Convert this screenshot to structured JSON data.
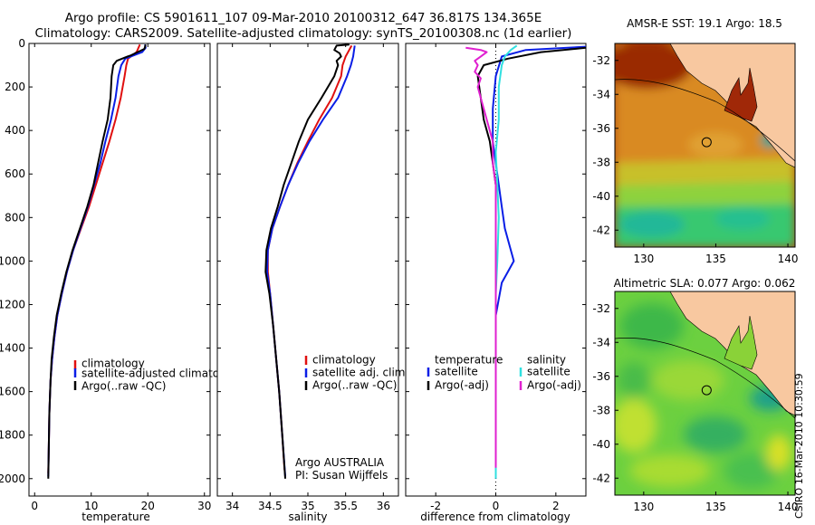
{
  "header": {
    "line1": "Argo profile: CS 5901611_107 09-Mar-2010 20100312_647 36.817S 134.365E",
    "line2": "Climatology: CARS2009. Satellite-adjusted climatology: synTS_20100308.nc (1d earlier)"
  },
  "side_text": "CSIRO 16-Mar-2010 10:30:59",
  "colors": {
    "climatology": "#e01010",
    "satellite": "#0a1ee6",
    "argo": "#000000",
    "salinity_satellite": "#30e0e0",
    "salinity_argo": "#e020d0",
    "land": "#f8c8a0"
  },
  "chart_data": [
    {
      "type": "line",
      "name": "temperature-profile",
      "xlabel": "temperature",
      "ylabel": "",
      "xlim": [
        -1,
        31
      ],
      "ylim": [
        2080,
        0
      ],
      "y_reversed": true,
      "xticks": [
        0,
        10,
        20,
        30
      ],
      "yticks": [
        0,
        200,
        400,
        600,
        800,
        1000,
        1200,
        1400,
        1600,
        1800,
        2000
      ],
      "grid": false,
      "legend": [
        "climatology",
        "satellite-adjusted climatology",
        "Argo(..raw -QC)"
      ],
      "series": [
        {
          "name": "climatology",
          "color": "#e01010",
          "points": [
            [
              18.6,
              5
            ],
            [
              18.0,
              40
            ],
            [
              16.5,
              70
            ],
            [
              16.2,
              100
            ],
            [
              15.9,
              150
            ],
            [
              15.2,
              250
            ],
            [
              14.3,
              350
            ],
            [
              13.2,
              450
            ],
            [
              12.0,
              550
            ],
            [
              10.8,
              650
            ],
            [
              9.6,
              750
            ],
            [
              8.2,
              850
            ],
            [
              6.8,
              950
            ],
            [
              5.7,
              1050
            ],
            [
              4.8,
              1150
            ],
            [
              4.0,
              1250
            ],
            [
              3.5,
              1350
            ],
            [
              3.1,
              1450
            ],
            [
              2.8,
              1550
            ],
            [
              2.6,
              1700
            ],
            [
              2.5,
              1850
            ],
            [
              2.4,
              1975
            ]
          ]
        },
        {
          "name": "satellite-adjusted climatology",
          "color": "#0a1ee6",
          "points": [
            [
              19.5,
              5
            ],
            [
              19.6,
              20
            ],
            [
              19.0,
              40
            ],
            [
              16.0,
              70
            ],
            [
              15.3,
              100
            ],
            [
              14.8,
              150
            ],
            [
              14.3,
              250
            ],
            [
              13.5,
              350
            ],
            [
              12.5,
              450
            ],
            [
              11.6,
              550
            ],
            [
              10.5,
              650
            ],
            [
              9.4,
              750
            ],
            [
              8.1,
              850
            ],
            [
              6.8,
              950
            ],
            [
              5.7,
              1050
            ],
            [
              4.8,
              1150
            ],
            [
              4.0,
              1250
            ],
            [
              3.5,
              1350
            ],
            [
              3.1,
              1450
            ],
            [
              2.8,
              1550
            ],
            [
              2.6,
              1700
            ],
            [
              2.5,
              1850
            ],
            [
              2.4,
              1990
            ]
          ]
        },
        {
          "name": "Argo(..raw -QC)",
          "color": "#000000",
          "points": [
            [
              19.6,
              5
            ],
            [
              19.4,
              25
            ],
            [
              17.0,
              55
            ],
            [
              16.4,
              60
            ],
            [
              14.5,
              80
            ],
            [
              13.9,
              100
            ],
            [
              13.6,
              150
            ],
            [
              13.4,
              250
            ],
            [
              12.9,
              350
            ],
            [
              12.0,
              450
            ],
            [
              11.2,
              550
            ],
            [
              10.4,
              650
            ],
            [
              9.3,
              750
            ],
            [
              8.0,
              850
            ],
            [
              6.7,
              950
            ],
            [
              5.6,
              1050
            ],
            [
              4.7,
              1150
            ],
            [
              3.9,
              1250
            ],
            [
              3.4,
              1350
            ],
            [
              3.0,
              1450
            ],
            [
              2.8,
              1550
            ],
            [
              2.6,
              1700
            ],
            [
              2.5,
              1850
            ],
            [
              2.4,
              2000
            ]
          ]
        }
      ]
    },
    {
      "type": "line",
      "name": "salinity-profile",
      "xlabel": "salinity",
      "ylabel": "",
      "xlim": [
        33.8,
        36.2
      ],
      "ylim": [
        2080,
        0
      ],
      "y_reversed": true,
      "xticks": [
        34,
        34.5,
        35,
        35.5,
        36
      ],
      "yticks": [
        0,
        200,
        400,
        600,
        800,
        1000,
        1200,
        1400,
        1600,
        1800,
        2000
      ],
      "grid": false,
      "legend": [
        "climatology",
        "satellite adj. clim.",
        "Argo(..raw -QC)"
      ],
      "annotations": [
        "Argo AUSTRALIA",
        "PI: Susan Wijffels"
      ],
      "series": [
        {
          "name": "climatology",
          "color": "#e01010",
          "points": [
            [
              35.58,
              10
            ],
            [
              35.5,
              60
            ],
            [
              35.46,
              100
            ],
            [
              35.44,
              150
            ],
            [
              35.32,
              250
            ],
            [
              35.15,
              350
            ],
            [
              35.0,
              450
            ],
            [
              34.86,
              550
            ],
            [
              34.74,
              650
            ],
            [
              34.63,
              750
            ],
            [
              34.53,
              850
            ],
            [
              34.47,
              950
            ],
            [
              34.47,
              1050
            ],
            [
              34.5,
              1150
            ],
            [
              34.54,
              1300
            ],
            [
              34.58,
              1450
            ],
            [
              34.62,
              1600
            ],
            [
              34.66,
              1800
            ],
            [
              34.69,
              1960
            ]
          ]
        },
        {
          "name": "satellite adj. clim.",
          "color": "#0a1ee6",
          "points": [
            [
              35.62,
              10
            ],
            [
              35.6,
              60
            ],
            [
              35.57,
              100
            ],
            [
              35.52,
              150
            ],
            [
              35.4,
              250
            ],
            [
              35.2,
              350
            ],
            [
              35.02,
              450
            ],
            [
              34.87,
              550
            ],
            [
              34.74,
              650
            ],
            [
              34.63,
              750
            ],
            [
              34.53,
              850
            ],
            [
              34.47,
              950
            ],
            [
              34.46,
              1050
            ],
            [
              34.5,
              1150
            ],
            [
              34.54,
              1300
            ],
            [
              34.58,
              1450
            ],
            [
              34.62,
              1600
            ],
            [
              34.66,
              1800
            ],
            [
              34.7,
              1990
            ]
          ]
        },
        {
          "name": "Argo(..raw -QC)",
          "color": "#000000",
          "points": [
            [
              35.55,
              5
            ],
            [
              35.38,
              10
            ],
            [
              35.35,
              30
            ],
            [
              35.42,
              45
            ],
            [
              35.44,
              60
            ],
            [
              35.38,
              80
            ],
            [
              35.4,
              100
            ],
            [
              35.35,
              150
            ],
            [
              35.18,
              250
            ],
            [
              35.0,
              350
            ],
            [
              34.88,
              450
            ],
            [
              34.78,
              550
            ],
            [
              34.68,
              650
            ],
            [
              34.6,
              750
            ],
            [
              34.51,
              850
            ],
            [
              34.45,
              950
            ],
            [
              34.44,
              1050
            ],
            [
              34.49,
              1150
            ],
            [
              34.54,
              1300
            ],
            [
              34.58,
              1450
            ],
            [
              34.62,
              1600
            ],
            [
              34.66,
              1800
            ],
            [
              34.7,
              2000
            ]
          ]
        }
      ]
    },
    {
      "type": "line",
      "name": "difference-profile",
      "xlabel": "difference from climatology",
      "ylabel": "",
      "xlim": [
        -3,
        3
      ],
      "ylim": [
        2080,
        0
      ],
      "y_reversed": true,
      "xticks": [
        -2,
        0,
        2
      ],
      "yticks": [
        0,
        200,
        400,
        600,
        800,
        1000,
        1200,
        1400,
        1600,
        1800,
        2000
      ],
      "grid": false,
      "zero_line": "dotted",
      "legend_temperature": [
        "temperature",
        "satellite",
        "Argo(-adj)"
      ],
      "legend_salinity": [
        "salinity",
        "satellite",
        "Argo(-adj)"
      ],
      "series": [
        {
          "name": "temperature satellite",
          "color": "#0a1ee6",
          "points": [
            [
              3.0,
              15
            ],
            [
              1.0,
              30
            ],
            [
              0.2,
              60
            ],
            [
              0.0,
              150
            ],
            [
              -0.1,
              300
            ],
            [
              -0.1,
              450
            ],
            [
              0.0,
              550
            ],
            [
              0.1,
              650
            ],
            [
              0.2,
              750
            ],
            [
              0.3,
              850
            ],
            [
              0.5,
              950
            ],
            [
              0.6,
              1000
            ],
            [
              0.4,
              1050
            ],
            [
              0.2,
              1100
            ],
            [
              0.0,
              1250
            ],
            [
              0.0,
              1500
            ],
            [
              0.0,
              1800
            ],
            [
              0.0,
              2000
            ]
          ]
        },
        {
          "name": "temperature Argo(-adj)",
          "color": "#000000",
          "points": [
            [
              3.0,
              20
            ],
            [
              1.5,
              40
            ],
            [
              0.4,
              70
            ],
            [
              -0.4,
              100
            ],
            [
              -0.6,
              150
            ],
            [
              -0.5,
              250
            ],
            [
              -0.4,
              350
            ],
            [
              -0.2,
              450
            ],
            [
              -0.1,
              550
            ],
            [
              0.0,
              650
            ],
            [
              0.0,
              800
            ],
            [
              0.0,
              1000
            ],
            [
              0.0,
              1400
            ],
            [
              0.0,
              1800
            ],
            [
              0.0,
              2000
            ]
          ]
        },
        {
          "name": "salinity satellite",
          "color": "#30e0e0",
          "points": [
            [
              0.7,
              10
            ],
            [
              0.5,
              30
            ],
            [
              0.3,
              60
            ],
            [
              0.2,
              100
            ],
            [
              0.1,
              200
            ],
            [
              0.1,
              350
            ],
            [
              0.0,
              500
            ],
            [
              0.05,
              650
            ],
            [
              0.1,
              800
            ],
            [
              0.05,
              1000
            ],
            [
              0.0,
              1150
            ],
            [
              0.0,
              1500
            ],
            [
              0.0,
              1800
            ],
            [
              0.0,
              2000
            ]
          ]
        },
        {
          "name": "salinity Argo(-adj)",
          "color": "#e020d0",
          "points": [
            [
              -1.0,
              20
            ],
            [
              -0.5,
              30
            ],
            [
              -0.3,
              40
            ],
            [
              -0.5,
              60
            ],
            [
              -0.7,
              80
            ],
            [
              -0.6,
              100
            ],
            [
              -0.7,
              130
            ],
            [
              -0.5,
              160
            ],
            [
              -0.6,
              200
            ],
            [
              -0.5,
              250
            ],
            [
              -0.3,
              350
            ],
            [
              -0.1,
              450
            ],
            [
              -0.1,
              550
            ],
            [
              0.0,
              650
            ],
            [
              0.0,
              800
            ],
            [
              0.0,
              1000
            ],
            [
              0.0,
              1400
            ],
            [
              0.0,
              1800
            ],
            [
              0.0,
              1950
            ]
          ]
        }
      ]
    },
    {
      "type": "heatmap",
      "name": "sst-map",
      "title": "AMSR-E SST: 19.1 Argo: 18.5",
      "xlim": [
        128,
        140.5
      ],
      "ylim": [
        -43,
        -31
      ],
      "xticks": [
        130,
        135,
        140
      ],
      "yticks": [
        -32,
        -34,
        -36,
        -38,
        -40,
        -42
      ],
      "argo_position": {
        "lon": 134.365,
        "lat": -36.817
      }
    },
    {
      "type": "heatmap",
      "name": "sla-map",
      "title": "Altimetric SLA: 0.077 Argo: 0.062",
      "xlim": [
        128,
        140.5
      ],
      "ylim": [
        -43,
        -31
      ],
      "xticks": [
        130,
        135,
        140
      ],
      "yticks": [
        -32,
        -34,
        -36,
        -38,
        -40,
        -42
      ],
      "argo_position": {
        "lon": 134.365,
        "lat": -36.817
      }
    }
  ]
}
